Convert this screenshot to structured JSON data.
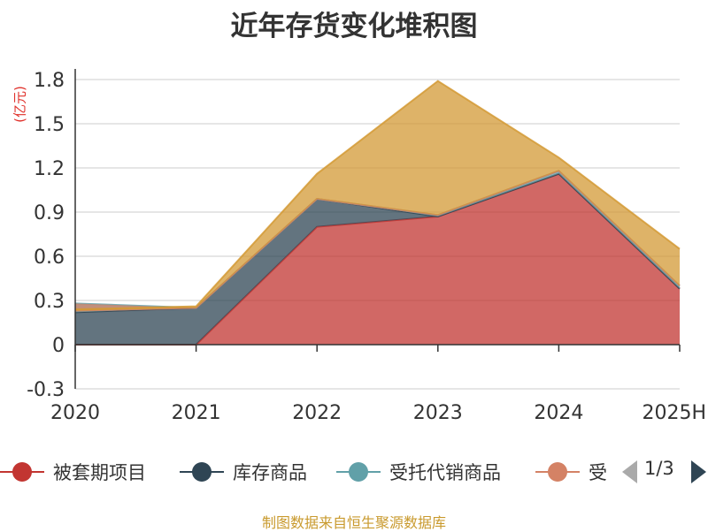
{
  "title": "近年存货变化堆积图",
  "unit_label": "(亿元)",
  "source": "制图数据来自恒生聚源数据库",
  "pager": "1/3",
  "legend": [
    {
      "label": "被套期项目",
      "color": "#c23531"
    },
    {
      "label": "库存商品",
      "color": "#2f4554"
    },
    {
      "label": "受托代销商品",
      "color": "#61a0a8"
    },
    {
      "label": "受",
      "color": "#d48265"
    }
  ],
  "chart_data": {
    "type": "area",
    "stacked": true,
    "categories": [
      "2020",
      "2021",
      "2022",
      "2023",
      "2024",
      "2025H"
    ],
    "y_ticks": [
      "-0.3",
      "0",
      "0.3",
      "0.6",
      "0.9",
      "1.2",
      "1.5",
      "1.8"
    ],
    "ylim": [
      -0.3,
      1.8
    ],
    "ylabel": "(亿元)",
    "grid": true,
    "series": [
      {
        "name": "被套期项目",
        "color": "#c23531",
        "values": [
          0,
          0,
          0.8,
          0.87,
          1.16,
          0.38
        ]
      },
      {
        "name": "库存商品",
        "color": "#2f4554",
        "values": [
          0.22,
          0.25,
          0.19,
          0,
          0,
          0
        ]
      },
      {
        "name": "受托代销商品",
        "color": "#61a0a8",
        "values": [
          0.06,
          0,
          0,
          0.01,
          0.02,
          0.02
        ]
      },
      {
        "name": "受",
        "color": "#d48265",
        "values": [
          -0.05,
          0,
          0,
          0,
          0,
          0
        ]
      },
      {
        "name": "",
        "color": "#d39a35",
        "values": [
          0.01,
          0.01,
          0.17,
          0.91,
          0.09,
          0.25
        ]
      }
    ]
  }
}
